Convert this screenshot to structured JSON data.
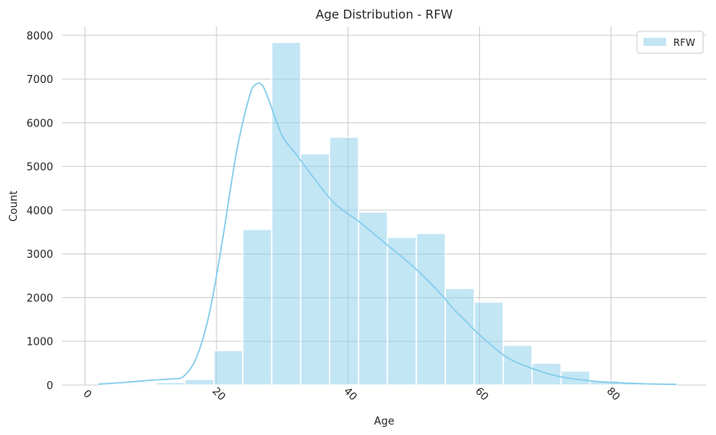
{
  "chart_data": {
    "type": "bar",
    "title": "Age Distribution - RFW",
    "xlabel": "Age",
    "ylabel": "Count",
    "xlim": [
      -3.5,
      94.5
    ],
    "ylim": [
      0,
      8200
    ],
    "xticks": [
      0,
      20,
      40,
      60,
      80
    ],
    "yticks": [
      0,
      1000,
      2000,
      3000,
      4000,
      5000,
      6000,
      7000,
      8000
    ],
    "grid": true,
    "legend": {
      "position": "top-right",
      "entries": [
        "RFW"
      ]
    },
    "colors": {
      "bar": "#87CEEB",
      "kde": "#87CEEB",
      "grid": "#cccccc",
      "edge": "#ffffff"
    },
    "series": [
      {
        "name": "RFW",
        "bin_edges": [
          2,
          6.4,
          10.8,
          15.2,
          19.6,
          24,
          28.4,
          32.8,
          37.2,
          41.6,
          46,
          50.4,
          54.8,
          59.2,
          63.6,
          68,
          72.4,
          76.8,
          81.2,
          85.6,
          90
        ],
        "values": [
          15,
          30,
          60,
          130,
          790,
          3560,
          7840,
          5290,
          5670,
          3960,
          3380,
          3470,
          2210,
          1900,
          910,
          500,
          320,
          100,
          50,
          15
        ]
      }
    ],
    "kde": {
      "x": [
        2,
        6,
        10,
        13,
        15,
        17,
        19,
        21,
        23,
        25,
        26,
        27,
        28,
        30,
        32,
        35,
        38,
        42,
        46,
        50,
        54,
        56,
        58,
        60,
        64,
        68,
        72,
        76,
        80,
        85,
        90
      ],
      "y": [
        20,
        60,
        110,
        140,
        200,
        650,
        1700,
        3400,
        5300,
        6600,
        6880,
        6850,
        6500,
        5700,
        5300,
        4700,
        4150,
        3700,
        3200,
        2700,
        2100,
        1750,
        1450,
        1150,
        650,
        380,
        200,
        110,
        60,
        30,
        15
      ]
    }
  }
}
